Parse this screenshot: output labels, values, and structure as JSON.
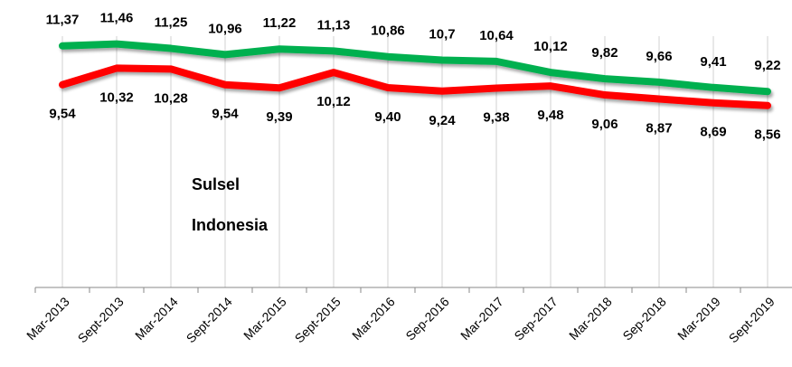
{
  "chart_data": {
    "type": "line",
    "categories": [
      "Mar-2013",
      "Sept-2013",
      "Mar-2014",
      "Sept-2014",
      "Mar-2015",
      "Sept-2015",
      "Mar-2016",
      "Sep-2016",
      "Mar-2017",
      "Sep-2017",
      "Mar-2018",
      "Sep-2018",
      "Mar-2019",
      "Sept-2019"
    ],
    "series": [
      {
        "name": "Sulsel",
        "color": "#ff0000",
        "values": [
          9.54,
          10.32,
          10.28,
          9.54,
          9.39,
          10.12,
          9.4,
          9.24,
          9.38,
          9.48,
          9.06,
          8.87,
          8.69,
          8.56
        ],
        "value_labels": [
          "9,54",
          "10,32",
          "10,28",
          "9,54",
          "9,39",
          "10,12",
          "9,40",
          "9,24",
          "9,38",
          "9,48",
          "9,06",
          "8,87",
          "8,69",
          "8,56"
        ]
      },
      {
        "name": "Indonesia",
        "color": "#00b050",
        "values": [
          11.37,
          11.46,
          11.25,
          10.96,
          11.22,
          11.13,
          10.86,
          10.7,
          10.64,
          10.12,
          9.82,
          9.66,
          9.41,
          9.22
        ],
        "value_labels": [
          "11,37",
          "11,46",
          "11,25",
          "10,96",
          "11,22",
          "11,13",
          "10,86",
          "10,7",
          "10,64",
          "10,12",
          "9,82",
          "9,66",
          "9,41",
          "9,22"
        ]
      }
    ],
    "ylim": [
      0,
      13.4
    ],
    "legend": "left"
  }
}
